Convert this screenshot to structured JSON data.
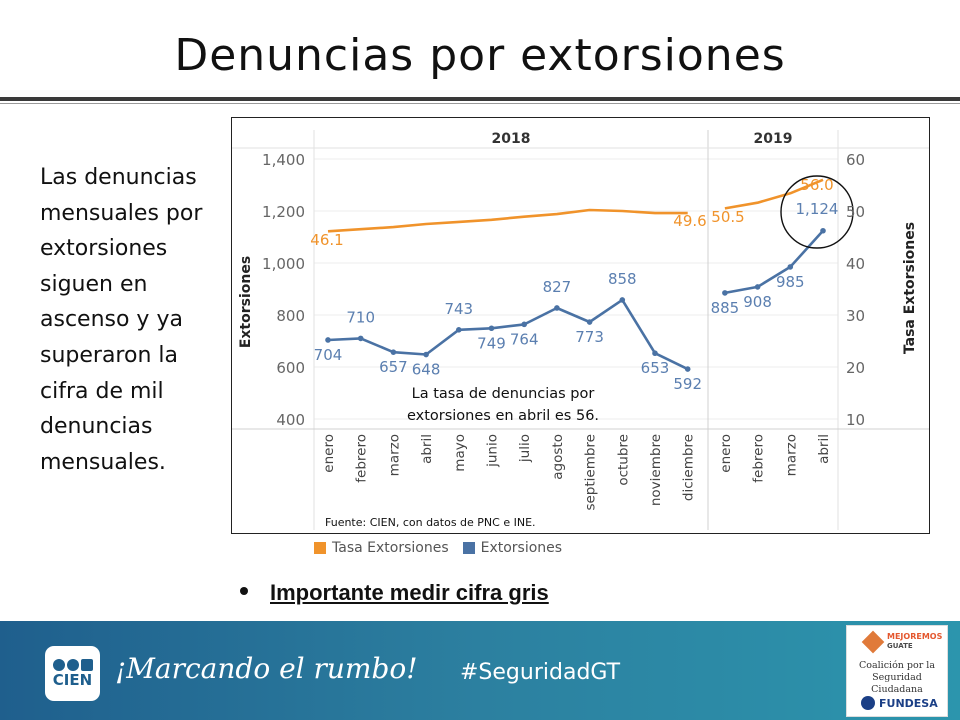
{
  "slide": {
    "title": "Denuncias por extorsiones",
    "side_text": "Las denuncias mensuales por extorsiones siguen en ascenso y ya superaron la cifra de mil denuncias mensuales.",
    "bullet": "Importante medir cifra gris"
  },
  "chart_data": {
    "type": "line",
    "years": [
      {
        "label": "2018",
        "months": 12
      },
      {
        "label": "2019",
        "months": 4
      }
    ],
    "categories": [
      "enero",
      "febrero",
      "marzo",
      "abril",
      "mayo",
      "junio",
      "julio",
      "agosto",
      "septiembre",
      "octubre",
      "noviembre",
      "diciembre",
      "enero",
      "febrero",
      "marzo",
      "abril"
    ],
    "ylabel_left": "Extorsiones",
    "ylabel_right": "Tasa Extorsiones",
    "left_ticks": [
      "1,400",
      "1,200",
      "1,000",
      "800",
      "600",
      "400"
    ],
    "right_ticks": [
      "60",
      "50",
      "40",
      "30",
      "20",
      "10"
    ],
    "ylim_left": [
      400,
      1400
    ],
    "ylim_right": [
      10,
      60
    ],
    "series": [
      {
        "name": "Tasa Extorsiones",
        "axis": "right",
        "color": "#f0932b",
        "values": [
          46.1,
          46.5,
          46.9,
          47.5,
          47.9,
          48.3,
          48.9,
          49.4,
          50.2,
          50.0,
          49.6,
          49.6,
          50.5,
          51.6,
          53.4,
          56.0
        ],
        "labels": {
          "0": "46.1",
          "11": "49.6",
          "12": "50.5",
          "15": "56.0"
        }
      },
      {
        "name": "Extorsiones",
        "axis": "left",
        "color": "#4a72a4",
        "values": [
          704,
          710,
          657,
          648,
          743,
          749,
          764,
          827,
          773,
          858,
          653,
          592,
          885,
          908,
          985,
          1124
        ],
        "labels": [
          "704",
          "710",
          "657",
          "648",
          "743",
          "749",
          "764",
          "827",
          "773",
          "858",
          "653",
          "592",
          "885",
          "908",
          "985",
          "1,124"
        ]
      }
    ],
    "annotation": [
      "La tasa de denuncias por",
      "extorsiones en abril es 56."
    ],
    "source": "Fuente: CIEN, con datos de PNC e INE."
  },
  "colors": {
    "orange": "#f0932b",
    "blue": "#4a72a4",
    "footer": "#2c80a0"
  },
  "footer": {
    "logo_word": "CIEN",
    "slogan": "¡Marcando el rumbo!",
    "hashtag": "#SeguridadGT",
    "partner_top1": "MEJOREMOS",
    "partner_top2": "GUATE",
    "partner_line1": "Coalición por la",
    "partner_line2": "Seguridad Ciudadana",
    "partner_bottom": "FUNDESA"
  }
}
